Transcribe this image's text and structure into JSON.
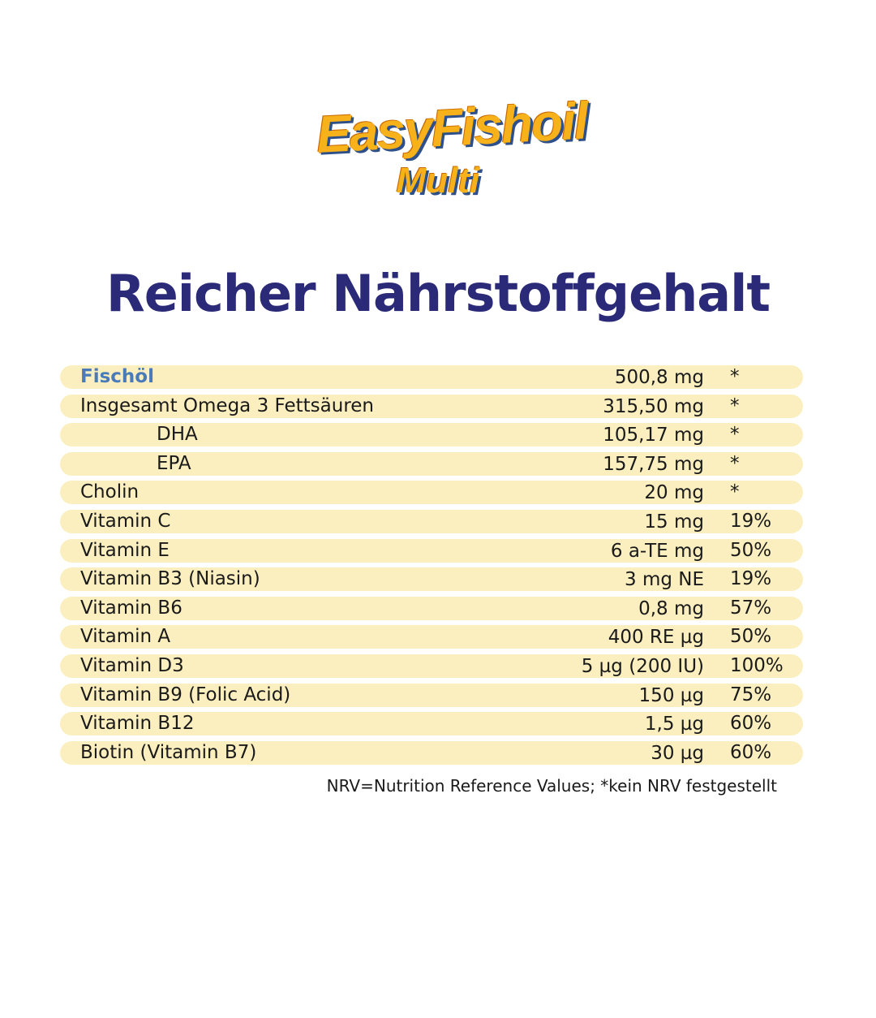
{
  "logo": {
    "line1": "EasyFishoil",
    "line2": "Multi"
  },
  "title": "Reicher Nährstoffgehalt",
  "colors": {
    "title": "#2b2a78",
    "row_bg": "#fbefc0",
    "highlight": "#4a7ab8"
  },
  "rows": [
    {
      "name": "Fischöl",
      "amount": "500,8 mg",
      "nrv": "*"
    },
    {
      "name": "Insgesamt Omega 3 Fettsäuren",
      "amount": "315,50 mg",
      "nrv": "*"
    },
    {
      "name": "DHA",
      "amount": "105,17 mg",
      "nrv": "*"
    },
    {
      "name": "EPA",
      "amount": "157,75 mg",
      "nrv": "*"
    },
    {
      "name": "Cholin",
      "amount": "20 mg",
      "nrv": "*"
    },
    {
      "name": "Vitamin C",
      "amount": "15 mg",
      "nrv": "19%"
    },
    {
      "name": "Vitamin E",
      "amount": "6 a-TE mg",
      "nrv": "50%"
    },
    {
      "name": "Vitamin B3 (Niasin)",
      "amount": "3 mg NE",
      "nrv": "19%"
    },
    {
      "name": "Vitamin B6",
      "amount": "0,8 mg",
      "nrv": "57%"
    },
    {
      "name": "Vitamin A",
      "amount": "400 RE µg",
      "nrv": "50%"
    },
    {
      "name": "Vitamin D3",
      "amount": "5 µg (200 IU)",
      "nrv": "100%"
    },
    {
      "name": "Vitamin B9 (Folic Acid)",
      "amount": "150 µg",
      "nrv": "75%"
    },
    {
      "name": "Vitamin B12",
      "amount": "1,5 µg",
      "nrv": "60%"
    },
    {
      "name": "Biotin (Vitamin B7)",
      "amount": "30 µg",
      "nrv": "60%"
    }
  ],
  "footnote": "NRV=Nutrition Reference Values; *kein NRV festgestellt"
}
